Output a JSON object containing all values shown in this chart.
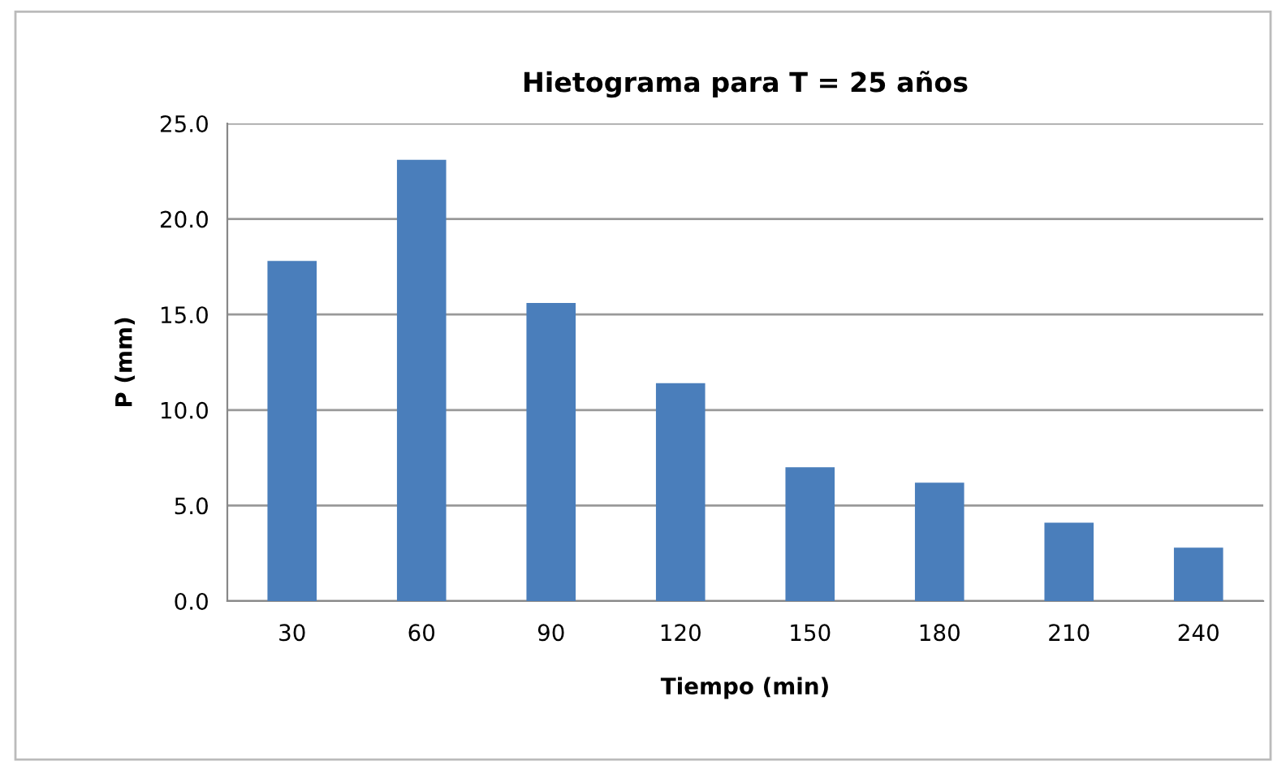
{
  "chart_data": {
    "type": "bar",
    "title": "Hietograma para T = 25 años",
    "xlabel": "Tiempo (min)",
    "ylabel": "P (mm)",
    "categories": [
      "30",
      "60",
      "90",
      "120",
      "150",
      "180",
      "210",
      "240"
    ],
    "values": [
      17.8,
      23.1,
      15.6,
      11.4,
      7.0,
      6.2,
      4.1,
      2.8
    ],
    "color": "#4a7ebb",
    "ylim": [
      0,
      25
    ],
    "yticks": [
      {
        "value": 0,
        "label": "0.0"
      },
      {
        "value": 5,
        "label": "5.0"
      },
      {
        "value": 10,
        "label": "10.0"
      },
      {
        "value": 15,
        "label": "15.0"
      },
      {
        "value": 20,
        "label": "20.0"
      },
      {
        "value": 25,
        "label": "25.0"
      }
    ],
    "grid": "y",
    "legend": false
  }
}
